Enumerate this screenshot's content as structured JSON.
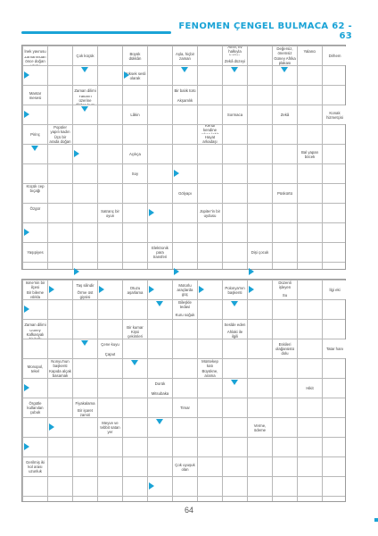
{
  "header": {
    "title": "FENOMEN ÇENGEL BULMACA 62 - 63"
  },
  "accent_color": "#1aa3d6",
  "page_number": "64",
  "puzzle1_clues": [
    "İnek yavrusu",
    "Zamanından önce doğan yavru",
    "Çok küçük",
    "Büyük dükkân",
    "Aşla, hiçbir zaman",
    "Alevi, ev halkıyla birlikte",
    "Zekâ düzeyi",
    "Değersiz, önemsiz",
    "Güney Afrika plakası",
    "Dirhem",
    "Yalancı",
    "Yüksek sesli olarak",
    "Mantar mesesi",
    "Zaman dilimi",
    "Yakarın üzerine dikilen kum",
    "Bir balık türü",
    "Akşamlık",
    "Lâkin",
    "Sormaca",
    "Zekâ",
    "Konak hizmetçisi",
    "Pirinç",
    "Popüler yapılı kadın",
    "Üçü bir arada doğan",
    "Kendi kendine çıkan lahit",
    "Hayat arkadaşı",
    "Açıkça",
    "Bal yapan böcek",
    "Soy",
    "Küçük cep bıçağı",
    "Gölyapı",
    "Püskürtü",
    "Özgür",
    "Satranç bir oyun",
    "Jüpiter'in bir uydusu",
    "Yaşıpiyes",
    "Elektronik para transferi",
    "Dişi çocuk"
  ],
  "puzzle2_clues": [
    "Isme'nin bir ilçesi",
    "Bir bileme ıslıkla",
    "Taş silindir",
    "Örme üst giysisi",
    "Otuzu aşarlama",
    "Motorlu araçlarda güç",
    "Polonya'nın başkenti",
    "Düzenli işleyen",
    "İlgi eki",
    "Su",
    "Bileşkle tedavi",
    "Kuru soğuk",
    "Zaman dilimi",
    "Güney Kafkasyalı bir halk",
    "Bir kumar aracı",
    "Kişsi çekimleri",
    "Seslde eden",
    "Ahlaki ile ilgili",
    "Çene kuyu",
    "Çaput",
    "Eskileri olağanüstü dolu",
    "Tatar hanı",
    "Monopol, tekel",
    "Nonyu'nun başkenti",
    "Kapıda alçak basamak",
    "Müntekep katı",
    "Büyükne, arama",
    "Dorük",
    "Mitsubaka",
    "Hikit",
    "Örgütle kullanılan çubuk",
    "Fiyakalama",
    "Bir işaret zamiri",
    "Timar",
    "Meyve ve tebbit satan yer",
    "Verme, ödeme",
    "Gerilmiş iki kol arası uzunluk",
    "Çok uyuşuk olan"
  ]
}
